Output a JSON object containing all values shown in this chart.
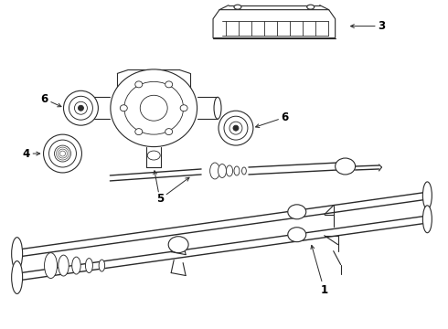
{
  "bg_color": "#ffffff",
  "line_color": "#2a2a2a",
  "figsize": [
    4.9,
    3.6
  ],
  "dpi": 100
}
